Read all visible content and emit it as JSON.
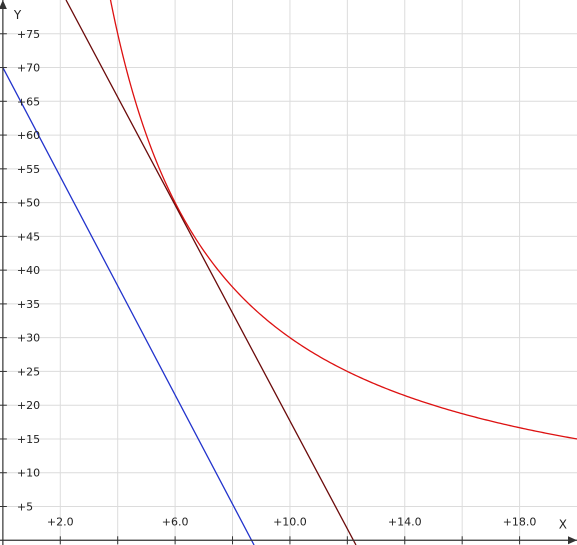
{
  "chart_data": {
    "type": "line",
    "xlabel": "X",
    "ylabel": "Y",
    "xlim": [
      -0.1,
      20.0
    ],
    "ylim": [
      -0.7,
      80.0
    ],
    "grid": true,
    "x_ticks": [
      2,
      6,
      10,
      14,
      18
    ],
    "x_tick_labels": [
      "+2.0",
      "+6.0",
      "+10.0",
      "+14.0",
      "+18.0"
    ],
    "x_minor_ticks": [
      4,
      8,
      12,
      16
    ],
    "y_ticks": [
      5,
      10,
      15,
      20,
      25,
      30,
      35,
      40,
      45,
      50,
      55,
      60,
      65,
      70,
      75
    ],
    "y_tick_labels": [
      "+5",
      "+10",
      "+15",
      "+20",
      "+25",
      "+30",
      "+35",
      "+40",
      "+45",
      "+50",
      "+55",
      "+60",
      "+65",
      "+70",
      "+75"
    ],
    "series": [
      {
        "kind": "function",
        "expression": "300/x",
        "x_range": [
          3.5,
          20.0
        ],
        "color": "#dd1111"
      },
      {
        "kind": "line",
        "points": [
          [
            2.2,
            80.0
          ],
          [
            12.3,
            -0.7
          ]
        ],
        "color": "#6b0a0a"
      },
      {
        "kind": "line",
        "points": [
          [
            0.0,
            70.0
          ],
          [
            8.75,
            -0.7
          ]
        ],
        "color": "#2233cc"
      }
    ]
  }
}
